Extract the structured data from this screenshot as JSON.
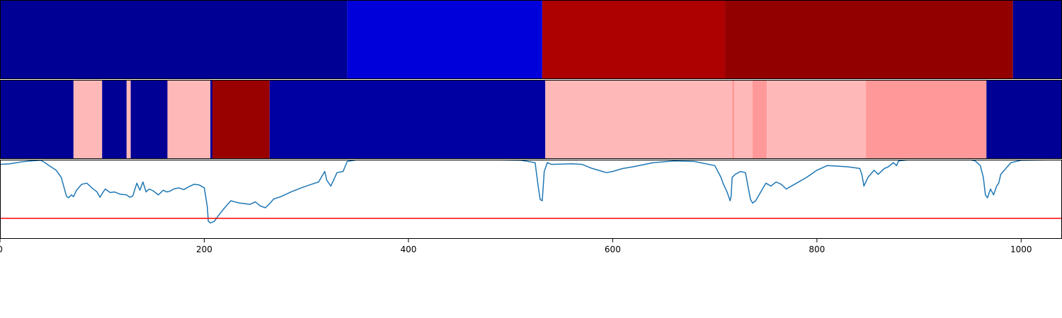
{
  "chart_data": [
    {
      "type": "heatmap",
      "colormap": "seismic",
      "value_range": [
        0,
        1
      ],
      "x_range": [
        0,
        1040
      ],
      "segments": [
        {
          "start": 0,
          "end": 340,
          "value": 0.1
        },
        {
          "start": 340,
          "end": 531,
          "value": 0.2
        },
        {
          "start": 531,
          "end": 710,
          "value": 0.91
        },
        {
          "start": 710,
          "end": 992,
          "value": 0.96
        },
        {
          "start": 992,
          "end": 1040,
          "value": 0.1
        }
      ]
    },
    {
      "type": "heatmap",
      "colormap": "seismic",
      "value_range": [
        0,
        1
      ],
      "x_range": [
        0,
        1040
      ],
      "segments": [
        {
          "start": 0,
          "end": 72,
          "value": 0.1
        },
        {
          "start": 72,
          "end": 100,
          "value": 0.57
        },
        {
          "start": 100,
          "end": 124,
          "value": 0.1
        },
        {
          "start": 124,
          "end": 128,
          "value": 0.57
        },
        {
          "start": 128,
          "end": 164,
          "value": 0.1
        },
        {
          "start": 164,
          "end": 206,
          "value": 0.57
        },
        {
          "start": 206,
          "end": 208,
          "value": 0.1
        },
        {
          "start": 208,
          "end": 264,
          "value": 0.95
        },
        {
          "start": 264,
          "end": 534,
          "value": 0.12
        },
        {
          "start": 534,
          "end": 717,
          "value": 0.57
        },
        {
          "start": 717,
          "end": 719,
          "value": 0.6
        },
        {
          "start": 719,
          "end": 737,
          "value": 0.57
        },
        {
          "start": 737,
          "end": 751,
          "value": 0.6
        },
        {
          "start": 751,
          "end": 848,
          "value": 0.57
        },
        {
          "start": 848,
          "end": 966,
          "value": 0.6
        },
        {
          "start": 966,
          "end": 1040,
          "value": 0.1
        }
      ]
    },
    {
      "type": "line",
      "x_range": [
        0,
        1040
      ],
      "ylim": [
        -0.35,
        1.0
      ],
      "series": [
        {
          "color": "#1f77b4",
          "x": [
            0,
            10,
            20,
            30,
            40,
            44,
            48,
            55,
            60,
            65,
            67,
            70,
            72,
            75,
            80,
            85,
            90,
            95,
            98,
            100,
            103,
            108,
            112,
            118,
            124,
            127,
            130,
            134,
            137,
            140,
            143,
            146,
            150,
            155,
            160,
            163,
            166,
            170,
            175,
            180,
            185,
            190,
            195,
            200,
            203,
            204,
            206,
            210,
            214,
            220,
            226,
            230,
            235,
            240,
            245,
            250,
            255,
            260,
            264,
            268,
            275,
            285,
            295,
            305,
            312,
            318,
            320,
            324,
            330,
            336,
            340,
            350,
            380,
            420,
            480,
            510,
            524,
            527,
            529,
            531,
            533,
            536,
            540,
            560,
            570,
            580,
            590,
            594,
            600,
            610,
            620,
            640,
            660,
            680,
            700,
            706,
            708,
            712,
            715,
            716,
            717,
            720,
            725,
            730,
            733,
            735,
            737,
            740,
            745,
            750,
            755,
            760,
            765,
            770,
            775,
            780,
            790,
            800,
            810,
            830,
            842,
            844,
            846,
            850,
            856,
            860,
            866,
            870,
            875,
            878,
            880,
            890,
            950,
            955,
            960,
            963,
            965,
            967,
            970,
            973,
            976,
            978,
            980,
            985,
            990,
            1000,
            1040
          ],
          "y": [
            0.92,
            0.93,
            0.96,
            0.98,
            0.99,
            0.95,
            0.9,
            0.82,
            0.7,
            0.38,
            0.35,
            0.4,
            0.37,
            0.48,
            0.58,
            0.6,
            0.52,
            0.45,
            0.36,
            0.42,
            0.5,
            0.44,
            0.45,
            0.41,
            0.4,
            0.36,
            0.38,
            0.6,
            0.48,
            0.62,
            0.45,
            0.5,
            0.47,
            0.4,
            0.48,
            0.45,
            0.46,
            0.5,
            0.52,
            0.49,
            0.54,
            0.58,
            0.57,
            0.52,
            0.2,
            -0.05,
            -0.08,
            -0.05,
            0.05,
            0.18,
            0.3,
            0.28,
            0.26,
            0.25,
            0.24,
            0.28,
            0.21,
            0.18,
            0.25,
            0.33,
            0.37,
            0.45,
            0.52,
            0.58,
            0.62,
            0.8,
            0.65,
            0.55,
            0.78,
            0.8,
            0.97,
            1.0,
            1.0,
            1.0,
            1.0,
            0.99,
            0.95,
            0.55,
            0.32,
            0.3,
            0.8,
            0.95,
            0.92,
            0.93,
            0.92,
            0.85,
            0.8,
            0.78,
            0.8,
            0.85,
            0.88,
            0.95,
            0.98,
            0.97,
            0.9,
            0.7,
            0.6,
            0.45,
            0.3,
            0.38,
            0.7,
            0.75,
            0.8,
            0.78,
            0.5,
            0.32,
            0.26,
            0.3,
            0.45,
            0.6,
            0.55,
            0.62,
            0.58,
            0.5,
            0.55,
            0.6,
            0.7,
            0.82,
            0.9,
            0.88,
            0.85,
            0.75,
            0.55,
            0.7,
            0.82,
            0.75,
            0.85,
            0.88,
            0.95,
            0.9,
            0.98,
            1.0,
            1.0,
            0.98,
            0.9,
            0.7,
            0.4,
            0.35,
            0.5,
            0.4,
            0.55,
            0.6,
            0.75,
            0.85,
            0.95,
            0.99,
            1.0
          ]
        },
        {
          "color": "#ff0000",
          "x": [
            0,
            1040
          ],
          "y": [
            0.0,
            0.0
          ]
        }
      ],
      "xticks": [
        0,
        200,
        400,
        600,
        800,
        1000
      ],
      "xtick_labels": [
        "0",
        "200",
        "400",
        "600",
        "800",
        "1000"
      ]
    }
  ]
}
